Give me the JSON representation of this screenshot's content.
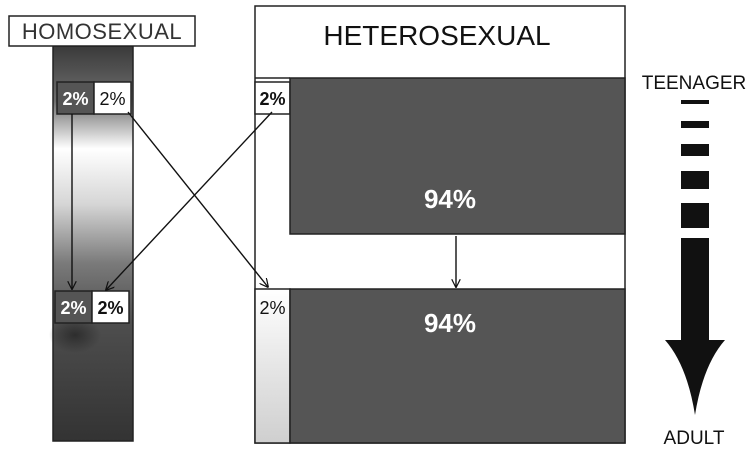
{
  "homosexual": {
    "title": "HOMOSEXUAL",
    "teen": {
      "dark_value": "2%",
      "light_value": "2%"
    },
    "adult": {
      "dark_value": "2%",
      "light_value": "2%"
    }
  },
  "heterosexual": {
    "title": "HETEROSEXUAL",
    "teen": {
      "light_value": "2%",
      "main_value": "94%"
    },
    "adult": {
      "light_value": "2%",
      "main_value": "94%"
    }
  },
  "timeline": {
    "start_label": "TEENAGER",
    "end_label": "ADULT"
  },
  "colors": {
    "dark_block": "#555555",
    "light_block": "#ffffff",
    "stroke": "#222222",
    "arrow": "#111111"
  }
}
